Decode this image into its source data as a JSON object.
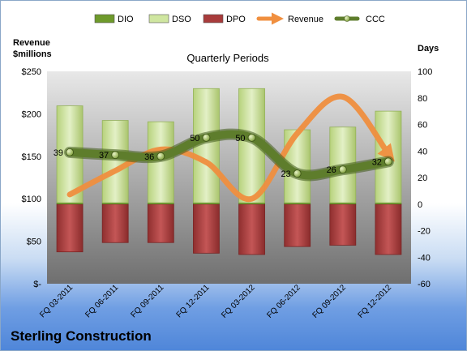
{
  "company": "Sterling Construction",
  "chart_data": {
    "type": "bar",
    "title": "Quarterly Periods",
    "y_left_label": [
      "Revenue",
      "$millions"
    ],
    "y_right_label": "Days",
    "categories": [
      "FQ 03-2011",
      "FQ 06-2011",
      "FQ 09-2011",
      "FQ 12-2011",
      "FQ 03-2012",
      "FQ 06-2012",
      "FQ 09-2012",
      "FQ 12-2012"
    ],
    "left_axis": {
      "min": 0,
      "max": 250,
      "ticks": [
        "$-",
        "$50",
        "$100",
        "$150",
        "$200",
        "$250"
      ]
    },
    "right_axis": {
      "min": -60,
      "max": 100,
      "ticks": [
        "-60",
        "-40",
        "-20",
        "0",
        "20",
        "40",
        "60",
        "80",
        "100"
      ]
    },
    "series": [
      {
        "name": "DIO",
        "axis": "right",
        "values": [
          1,
          1,
          1,
          1,
          1,
          1,
          1,
          1
        ],
        "color": "#6e9a2b"
      },
      {
        "name": "DSO",
        "axis": "right",
        "values": [
          73,
          62,
          61,
          86,
          86,
          55,
          57,
          69
        ],
        "color": "#cfe6a0"
      },
      {
        "name": "DPO",
        "axis": "right",
        "values": [
          -36,
          -29,
          -29,
          -37,
          -38,
          -32,
          -31,
          -38
        ],
        "color": "#a83b3b"
      },
      {
        "name": "Revenue",
        "axis": "left",
        "values": [
          105,
          133,
          158,
          143,
          100,
          177,
          220,
          153
        ],
        "color": "#f08f3f"
      },
      {
        "name": "CCC",
        "axis": "right",
        "values": [
          39,
          37,
          36,
          50,
          50,
          23,
          26,
          32
        ],
        "color": "#5e7d2c"
      }
    ],
    "legend": "top",
    "ccc_labels": [
      "39",
      "37",
      "36",
      "50",
      "50",
      "23",
      "26",
      "32"
    ]
  }
}
